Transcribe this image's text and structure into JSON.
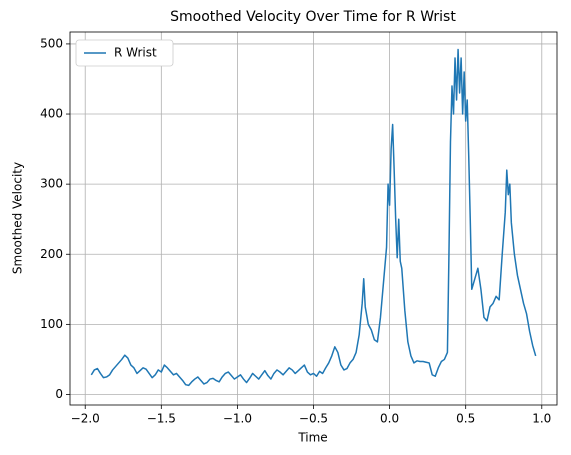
{
  "chart_data": {
    "type": "line",
    "title": "Smoothed Velocity Over Time for R Wrist",
    "xlabel": "Time",
    "ylabel": "Smoothed Velocity",
    "x": [
      -1.96,
      -1.94,
      -1.92,
      -1.9,
      -1.88,
      -1.86,
      -1.84,
      -1.82,
      -1.8,
      -1.78,
      -1.76,
      -1.74,
      -1.72,
      -1.7,
      -1.68,
      -1.66,
      -1.64,
      -1.62,
      -1.6,
      -1.58,
      -1.56,
      -1.54,
      -1.52,
      -1.5,
      -1.48,
      -1.46,
      -1.44,
      -1.42,
      -1.4,
      -1.38,
      -1.36,
      -1.34,
      -1.32,
      -1.3,
      -1.28,
      -1.26,
      -1.24,
      -1.22,
      -1.2,
      -1.18,
      -1.16,
      -1.14,
      -1.12,
      -1.1,
      -1.08,
      -1.06,
      -1.04,
      -1.02,
      -1.0,
      -0.98,
      -0.96,
      -0.94,
      -0.92,
      -0.9,
      -0.88,
      -0.86,
      -0.84,
      -0.82,
      -0.8,
      -0.78,
      -0.76,
      -0.74,
      -0.72,
      -0.7,
      -0.68,
      -0.66,
      -0.64,
      -0.62,
      -0.6,
      -0.58,
      -0.56,
      -0.54,
      -0.52,
      -0.5,
      -0.48,
      -0.46,
      -0.44,
      -0.42,
      -0.4,
      -0.38,
      -0.36,
      -0.34,
      -0.32,
      -0.3,
      -0.28,
      -0.26,
      -0.24,
      -0.22,
      -0.2,
      -0.18,
      -0.17,
      -0.16,
      -0.14,
      -0.12,
      -0.1,
      -0.08,
      -0.06,
      -0.04,
      -0.02,
      -0.01,
      0.0,
      0.01,
      0.02,
      0.03,
      0.04,
      0.05,
      0.06,
      0.07,
      0.08,
      0.1,
      0.12,
      0.14,
      0.16,
      0.18,
      0.2,
      0.22,
      0.24,
      0.26,
      0.28,
      0.3,
      0.32,
      0.34,
      0.36,
      0.38,
      0.39,
      0.4,
      0.41,
      0.42,
      0.43,
      0.44,
      0.45,
      0.46,
      0.47,
      0.48,
      0.49,
      0.5,
      0.51,
      0.52,
      0.53,
      0.54,
      0.56,
      0.58,
      0.6,
      0.62,
      0.64,
      0.66,
      0.68,
      0.7,
      0.72,
      0.74,
      0.76,
      0.77,
      0.78,
      0.79,
      0.8,
      0.82,
      0.84,
      0.86,
      0.88,
      0.9,
      0.92,
      0.94,
      0.96
    ],
    "series": [
      {
        "name": "R Wrist",
        "color": "#1f77b4",
        "values": [
          28,
          35,
          37,
          30,
          24,
          25,
          28,
          35,
          40,
          45,
          50,
          56,
          52,
          42,
          38,
          30,
          34,
          38,
          36,
          30,
          24,
          28,
          35,
          32,
          42,
          38,
          33,
          28,
          30,
          25,
          20,
          14,
          13,
          18,
          22,
          25,
          20,
          15,
          17,
          22,
          23,
          20,
          18,
          25,
          30,
          32,
          27,
          22,
          25,
          28,
          22,
          17,
          23,
          30,
          26,
          22,
          28,
          34,
          27,
          22,
          30,
          35,
          32,
          28,
          33,
          38,
          35,
          30,
          34,
          38,
          42,
          32,
          28,
          30,
          26,
          33,
          30,
          38,
          45,
          55,
          68,
          60,
          42,
          35,
          37,
          45,
          50,
          60,
          85,
          130,
          165,
          125,
          100,
          92,
          78,
          75,
          110,
          160,
          210,
          300,
          270,
          350,
          385,
          320,
          250,
          195,
          250,
          190,
          180,
          120,
          75,
          55,
          45,
          48,
          47,
          47,
          46,
          45,
          28,
          26,
          38,
          47,
          50,
          60,
          200,
          360,
          440,
          400,
          480,
          420,
          492,
          430,
          480,
          400,
          460,
          390,
          420,
          340,
          250,
          150,
          165,
          180,
          150,
          110,
          105,
          125,
          130,
          140,
          135,
          200,
          260,
          320,
          285,
          300,
          245,
          200,
          170,
          150,
          130,
          115,
          90,
          70,
          55
        ]
      }
    ],
    "xlim": [
      -2.1,
      1.1
    ],
    "xticks": [
      {
        "value": -2.0,
        "label": "−2.0"
      },
      {
        "value": -1.5,
        "label": "−1.5"
      },
      {
        "value": -1.0,
        "label": "−1.0"
      },
      {
        "value": -0.5,
        "label": "−0.5"
      },
      {
        "value": 0.0,
        "label": "0.0"
      },
      {
        "value": 0.5,
        "label": "0.5"
      },
      {
        "value": 1.0,
        "label": "1.0"
      }
    ],
    "ylim": [
      -15,
      517
    ],
    "yticks": [
      0,
      100,
      200,
      300,
      400,
      500
    ],
    "grid": true,
    "legend": "upper left"
  }
}
